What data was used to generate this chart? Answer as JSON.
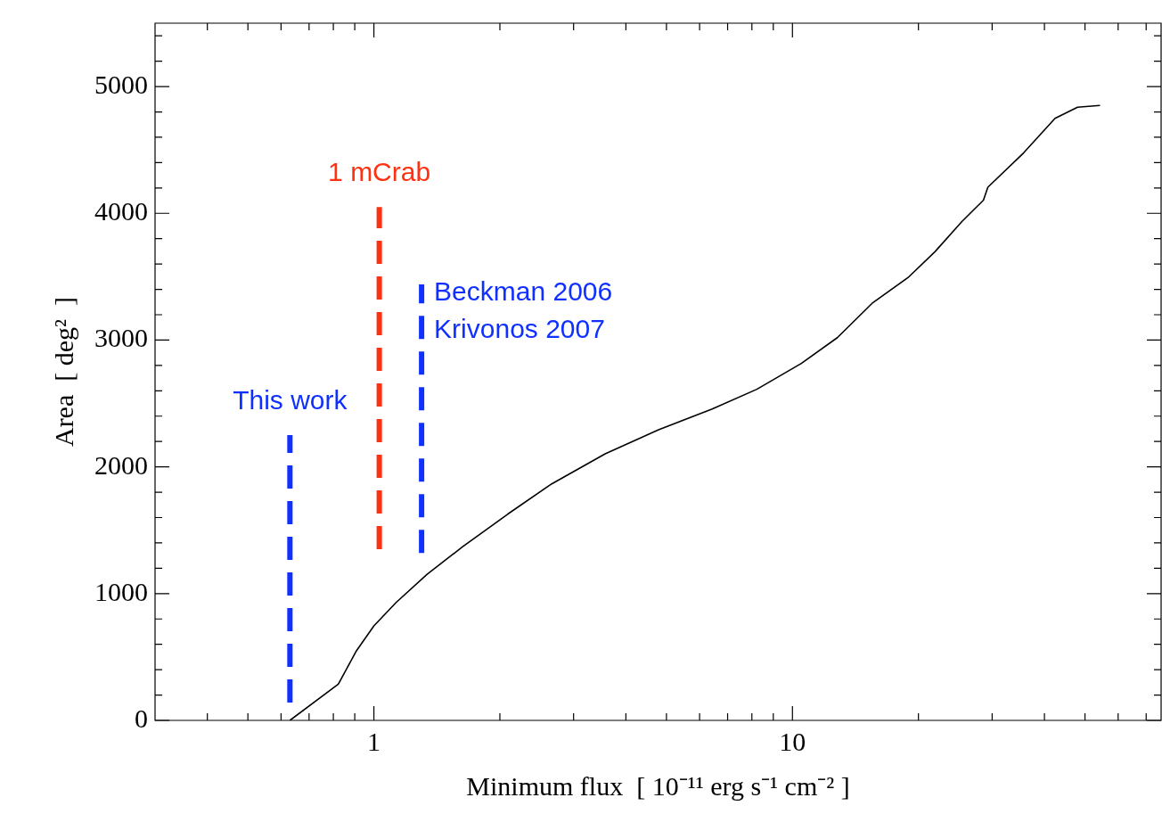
{
  "chart_data": {
    "type": "line",
    "xlabel": "Minimum flux  [ 10⁻¹¹ erg s⁻¹ cm⁻² ]",
    "ylabel": "Area  [ deg²  ]",
    "log": "x",
    "xlim": [
      0.3,
      76
    ],
    "ylim": [
      0,
      5500
    ],
    "xticks": [
      {
        "value": 0.4,
        "label": null
      },
      {
        "value": 0.5,
        "label": null
      },
      {
        "value": 0.6,
        "label": null
      },
      {
        "value": 0.7,
        "label": null
      },
      {
        "value": 0.8,
        "label": null
      },
      {
        "value": 0.9,
        "label": null
      },
      1,
      {
        "value": 2,
        "label": null
      },
      {
        "value": 3,
        "label": null
      },
      {
        "value": 4,
        "label": null
      },
      {
        "value": 5,
        "label": null
      },
      {
        "value": 6,
        "label": null
      },
      {
        "value": 7,
        "label": null
      },
      {
        "value": 8,
        "label": null
      },
      {
        "value": 9,
        "label": null
      },
      10,
      {
        "value": 20,
        "label": null
      },
      {
        "value": 30,
        "label": null
      },
      {
        "value": 40,
        "label": null
      },
      {
        "value": 50,
        "label": null
      },
      {
        "value": 60,
        "label": null
      },
      {
        "value": 70,
        "label": null
      }
    ],
    "yticks": [
      0,
      {
        "value": 200,
        "label": null
      },
      {
        "value": 400,
        "label": null
      },
      {
        "value": 600,
        "label": null
      },
      {
        "value": 800,
        "label": null
      },
      1000,
      {
        "value": 1200,
        "label": null
      },
      {
        "value": 1400,
        "label": null
      },
      {
        "value": 1600,
        "label": null
      },
      {
        "value": 1800,
        "label": null
      },
      2000,
      {
        "value": 2200,
        "label": null
      },
      {
        "value": 2400,
        "label": null
      },
      {
        "value": 2600,
        "label": null
      },
      {
        "value": 2800,
        "label": null
      },
      3000,
      {
        "value": 3200,
        "label": null
      },
      {
        "value": 3400,
        "label": null
      },
      {
        "value": 3600,
        "label": null
      },
      {
        "value": 3800,
        "label": null
      },
      4000,
      {
        "value": 4200,
        "label": null
      },
      {
        "value": 4400,
        "label": null
      },
      {
        "value": 4600,
        "label": null
      },
      {
        "value": 4800,
        "label": null
      },
      5000,
      {
        "value": 5200,
        "label": null
      },
      {
        "value": 5400,
        "label": null
      }
    ],
    "grid": false,
    "legend": false,
    "marker": "none",
    "series": [
      {
        "color": "#000000",
        "line_style": "solid",
        "x": [
          0.63,
          0.822,
          0.906,
          1.0,
          1.13,
          1.34,
          1.63,
          2.09,
          2.66,
          3.57,
          4.79,
          6.43,
          8.22,
          10.5,
          12.8,
          15.5,
          18.9,
          21.9,
          25.4,
          28.6,
          29.3,
          35.7,
          42.4,
          48.0,
          54.3
        ],
        "values": [
          0,
          285,
          543,
          746,
          930,
          1153,
          1370,
          1628,
          1866,
          2103,
          2293,
          2456,
          2612,
          2816,
          3019,
          3290,
          3494,
          3697,
          3935,
          4104,
          4206,
          4478,
          4749,
          4837,
          4851
        ]
      },
      {
        "name": "This work",
        "color": "#1030ff",
        "line_style": "dashed",
        "x": [
          0.63,
          0.63
        ],
        "values": [
          140,
          2250
        ]
      },
      {
        "name": "1 mCrab",
        "color": "#ff3010",
        "line_style": "dashed",
        "x": [
          1.03,
          1.03
        ],
        "values": [
          1350,
          4050
        ]
      },
      {
        "name": "Beckman 2006 Krivonos 2007",
        "color": "#1030ff",
        "line_style": "dashed",
        "x": [
          1.3,
          1.3
        ],
        "values": [
          1320,
          3440
        ]
      }
    ]
  }
}
